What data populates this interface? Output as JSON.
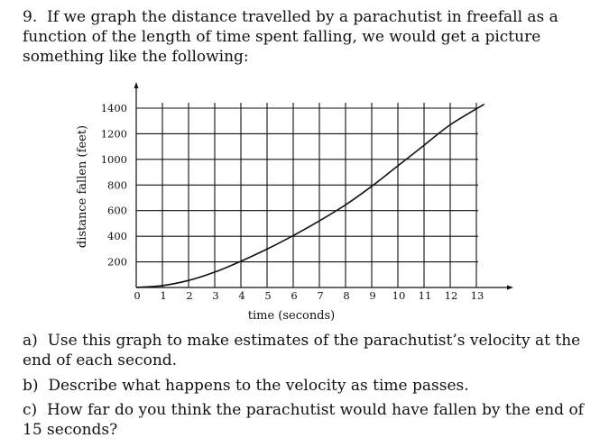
{
  "problem": {
    "number": "9.",
    "intro": "If we graph the distance travelled by a parachutist in freefall as a function of the length of time spent falling, we would get a picture something like the following:",
    "questions": [
      {
        "label": "a)",
        "text": "Use this graph to make estimates of the parachutist’s velocity at the end of each second."
      },
      {
        "label": "b)",
        "text": "Describe what happens to the velocity as time passes."
      },
      {
        "label": "c)",
        "text": "How far do you think the parachutist would have fallen by the end of 15 seconds?"
      }
    ]
  },
  "chart_data": {
    "type": "line",
    "title": "",
    "xlabel": "time (seconds)",
    "ylabel": "distance fallen (feet)",
    "xlim": [
      0,
      13
    ],
    "ylim": [
      0,
      1400
    ],
    "x_ticks": [
      "0",
      "1",
      "2",
      "3",
      "4",
      "5",
      "6",
      "7",
      "8",
      "9",
      "10",
      "11",
      "12",
      "13"
    ],
    "y_ticks": [
      "200",
      "400",
      "600",
      "800",
      "1000",
      "1200",
      "1400"
    ],
    "grid": true,
    "x": [
      0,
      1,
      2,
      3,
      4,
      5,
      6,
      7,
      8,
      9,
      10,
      11,
      12,
      13.3
    ],
    "series": [
      {
        "values": [
          0,
          15,
          55,
          120,
          205,
          300,
          405,
          520,
          645,
          790,
          950,
          1110,
          1270,
          1430
        ]
      }
    ],
    "colors": {
      "line": "#111111",
      "grid": "#111111"
    }
  }
}
